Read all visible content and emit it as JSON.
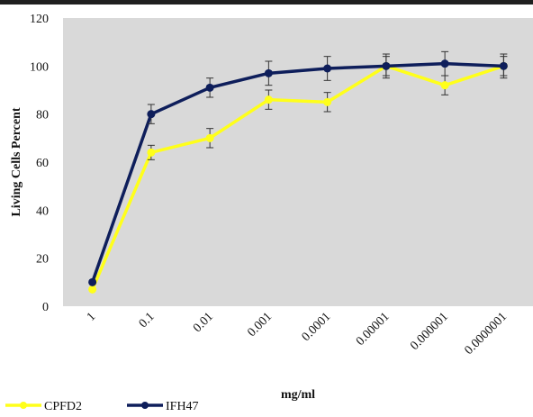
{
  "chart_data": {
    "type": "line",
    "title": "",
    "xlabel": "mg/ml",
    "ylabel": "Living Cells Percent",
    "categories": [
      "1",
      "0.1",
      "0.01",
      "0.001",
      "0.0001",
      "0.00001",
      "0.000001",
      "0.0000001"
    ],
    "ylim": [
      0,
      120
    ],
    "yticks": [
      0,
      20,
      40,
      60,
      80,
      100,
      120
    ],
    "grid": false,
    "legend_position": "bottom-left",
    "series": [
      {
        "name": "CPFD2",
        "color": "#ffff1a",
        "values": [
          7,
          64,
          70,
          86,
          85,
          100,
          92,
          100
        ],
        "error": [
          0,
          3,
          4,
          4,
          4,
          4,
          4,
          4
        ]
      },
      {
        "name": "IFH47",
        "color": "#0e1e5b",
        "values": [
          10,
          80,
          91,
          97,
          99,
          100,
          101,
          100
        ],
        "error": [
          0,
          4,
          4,
          5,
          5,
          5,
          5,
          5
        ]
      }
    ],
    "plot_background": "#d9d9d9"
  }
}
